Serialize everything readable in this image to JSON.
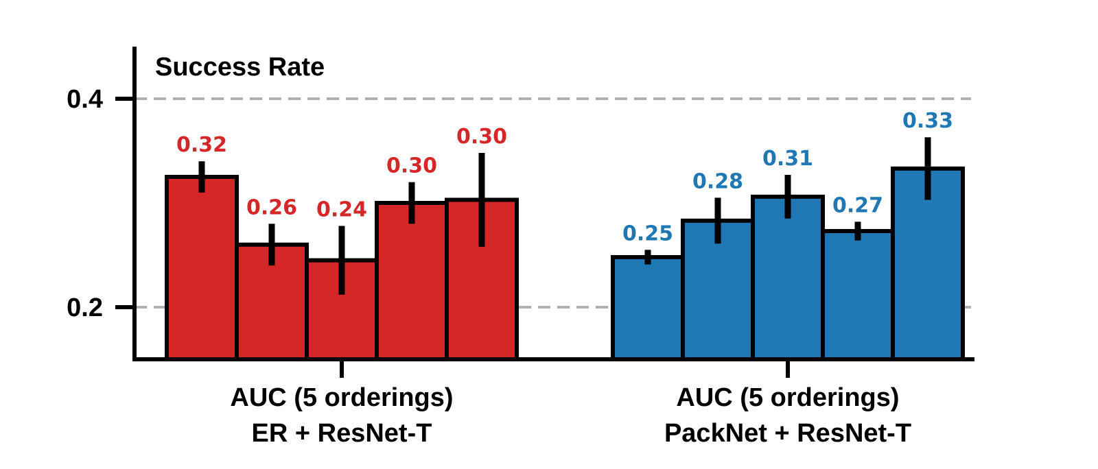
{
  "chart_data": {
    "type": "bar",
    "ylabel": "Success Rate",
    "ylim": [
      0.15,
      0.45
    ],
    "yticks": [
      0.2,
      0.4
    ],
    "ytick_labels": [
      "0.2",
      "0.4"
    ],
    "grid": "dashed horizontal at y ticks",
    "categories": [
      "AUC (5 orderings)\nER + ResNet-T",
      "AUC (5 orderings)\nPackNet + ResNet-T"
    ],
    "groups": [
      {
        "label_lines": [
          "AUC (5 orderings)",
          "ER + ResNet-T"
        ],
        "color": "#d62728",
        "values": [
          0.325,
          0.26,
          0.245,
          0.3,
          0.303
        ],
        "errors": [
          0.015,
          0.02,
          0.033,
          0.02,
          0.045
        ],
        "labels": [
          "0.32",
          "0.26",
          "0.24",
          "0.30",
          "0.30"
        ]
      },
      {
        "label_lines": [
          "AUC (5 orderings)",
          "PackNet + ResNet-T"
        ],
        "color": "#1f77b4",
        "values": [
          0.248,
          0.283,
          0.306,
          0.273,
          0.333
        ],
        "errors": [
          0.007,
          0.022,
          0.021,
          0.009,
          0.03
        ],
        "labels": [
          "0.25",
          "0.28",
          "0.31",
          "0.27",
          "0.33"
        ]
      }
    ]
  }
}
